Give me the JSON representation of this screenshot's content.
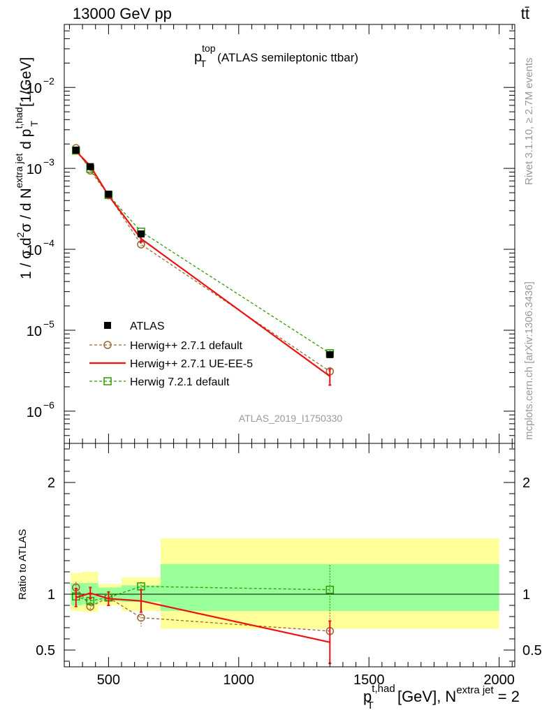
{
  "header": {
    "left": "13000 GeV pp",
    "right": "tt̄"
  },
  "side": {
    "rivet": "Rivet 3.1.10, ≥ 2.7M events",
    "mcplots": "mcplots.cern.ch [arXiv:1306.3436]"
  },
  "watermark": "ATLAS_2019_I1750330",
  "chart_data": [
    {
      "type": "line",
      "title": "p_T^top (ATLAS semileptonic ttbar)",
      "title_main": "p",
      "title_sup": "top",
      "title_sub": "T",
      "title_rest": "(ATLAS semileptonic ttbar)",
      "ylabel": "1 / σ d²σ / d N^{extra jet} d p_T^{t,had} [1/GeV]",
      "ylabel_a": "1 / σ d",
      "ylabel_b": "2",
      "ylabel_c": "σ /  d N",
      "ylabel_d": "extra jet",
      "ylabel_e": " d p",
      "ylabel_f": "t,had",
      "ylabel_g": "T",
      "ylabel_h": " [1/GeV]",
      "yscale": "log",
      "ylim": [
        4e-07,
        0.06
      ],
      "xlim": [
        330,
        2060
      ],
      "ytick_values": [
        1e-06,
        1e-05,
        0.0001,
        0.001,
        0.01
      ],
      "ytick_labels": [
        {
          "base": "10",
          "exp": "−6"
        },
        {
          "base": "10",
          "exp": "−5"
        },
        {
          "base": "10",
          "exp": "−4"
        },
        {
          "base": "10",
          "exp": "−3"
        },
        {
          "base": "10",
          "exp": "−2"
        }
      ],
      "legend_position": "center-left",
      "series": [
        {
          "name": "ATLAS",
          "style": "marker",
          "color": "#000000",
          "x": [
            375,
            430,
            500,
            625,
            1350
          ],
          "values": [
            0.00168,
            0.00105,
            0.00048,
            0.000155,
            5e-06
          ],
          "err": [
            8e-05,
            5e-05,
            2e-05,
            8e-06,
            4e-07
          ]
        },
        {
          "name": "Herwig++ 2.7.1 default",
          "style": "dashed-circle",
          "color": "#996633",
          "x": [
            375,
            430,
            500,
            625,
            1350
          ],
          "values": [
            0.00178,
            0.00094,
            0.000465,
            0.000115,
            3.1e-06
          ],
          "err": [
            5e-05,
            3e-05,
            2e-05,
            6e-06,
            4e-07
          ]
        },
        {
          "name": "Herwig++ 2.7.1 UE-EE-5",
          "style": "solid",
          "color": "#ee1111",
          "x": [
            375,
            430,
            500,
            625,
            1350
          ],
          "values": [
            0.00163,
            0.00107,
            0.000462,
            0.000135,
            2.7e-06
          ],
          "err": [
            8e-05,
            5e-05,
            3e-05,
            1.2e-05,
            6e-07
          ]
        },
        {
          "name": "Herwig 7.2.1 default",
          "style": "dashed-square",
          "color": "#339900",
          "x": [
            375,
            430,
            500,
            625,
            1350
          ],
          "values": [
            0.00166,
            0.00099,
            0.000468,
            0.000165,
            5.2e-06
          ],
          "err": [
            5e-05,
            3e-05,
            2e-05,
            6e-06,
            4e-07
          ]
        }
      ]
    },
    {
      "type": "line",
      "ylabel": "Ratio to ATLAS",
      "ylim": [
        0.35,
        2.35
      ],
      "ytick_values": [
        0.5,
        1,
        2
      ],
      "ytick_labels": [
        "0.5",
        "1",
        "2"
      ],
      "xlabel": "p_T^{t,had} [GeV], N^{extra jet} = 2",
      "xlabel_a": "p",
      "xlabel_b": "t,had",
      "xlabel_c": "T",
      "xlabel_d": " [GeV], N",
      "xlabel_e": "extra jet",
      "xlabel_f": " = 2",
      "xtick_values": [
        500,
        1000,
        1500,
        2000
      ],
      "xtick_labels": [
        "500",
        "1000",
        "1500",
        "2000"
      ],
      "bands": {
        "bins": [
          [
            355,
            400
          ],
          [
            400,
            460
          ],
          [
            460,
            550
          ],
          [
            550,
            700
          ],
          [
            700,
            2000
          ]
        ],
        "outer": [
          [
            0.85,
            1.19
          ],
          [
            0.84,
            1.2
          ],
          [
            0.9,
            1.09
          ],
          [
            0.85,
            1.15
          ],
          [
            0.69,
            1.5
          ]
        ],
        "inner": [
          [
            0.9,
            1.1
          ],
          [
            0.91,
            1.1
          ],
          [
            0.94,
            1.06
          ],
          [
            0.93,
            1.08
          ],
          [
            0.85,
            1.27
          ]
        ]
      },
      "series": [
        {
          "name": "Herwig++ 2.7.1 default",
          "style": "dashed-circle",
          "color": "#996633",
          "x": [
            375,
            430,
            500,
            625,
            1350
          ],
          "values": [
            1.06,
            0.89,
            0.97,
            0.79,
            0.67
          ],
          "err": [
            0.05,
            0.04,
            0.04,
            0.08,
            0.14
          ]
        },
        {
          "name": "Herwig++ 2.7.1 UE-EE-5",
          "style": "solid",
          "color": "#ee1111",
          "x": [
            375,
            430,
            500,
            625,
            1350
          ],
          "values": [
            0.97,
            1.01,
            0.96,
            0.94,
            0.57
          ],
          "err": [
            0.08,
            0.05,
            0.06,
            0.1,
            0.19
          ]
        },
        {
          "name": "Herwig 7.2.1 default",
          "style": "dashed-square",
          "color": "#339900",
          "x": [
            375,
            430,
            500,
            625,
            1350
          ],
          "values": [
            0.98,
            0.94,
            0.97,
            1.07,
            1.04
          ],
          "err": [
            0.04,
            0.04,
            0.03,
            0.04,
            0.22
          ]
        }
      ]
    }
  ]
}
